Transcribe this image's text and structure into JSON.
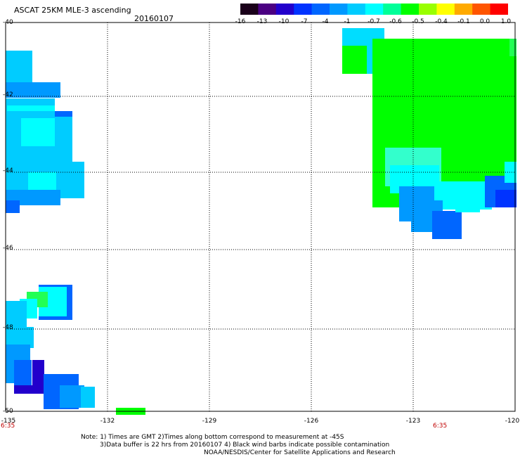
{
  "header": {
    "title": "ASCAT 25KM MLE-3 ascending",
    "date": "20160107"
  },
  "colorbar": {
    "labels": [
      "-16",
      "-13",
      "-10",
      "-7",
      "-4",
      "-1",
      "-0.7",
      "-0.6",
      "-0.5",
      "-0.4",
      "-0.1",
      "0.0",
      "1.0"
    ],
    "colors": [
      "#1a001a",
      "#4b0082",
      "#2200cc",
      "#0033ff",
      "#0066ff",
      "#0099ff",
      "#00ccff",
      "#00ffff",
      "#00ff99",
      "#00ff00",
      "#99ff00",
      "#ffff00",
      "#ffaa00",
      "#ff5500",
      "#ff0000"
    ]
  },
  "axes": {
    "lat_labels": [
      "-40",
      "-42",
      "-44",
      "-46",
      "-48",
      "-50"
    ],
    "lon_labels": [
      "-135",
      "-132",
      "-129",
      "-126",
      "-123",
      "-120"
    ],
    "lon_label_prefix": "-12",
    "time_labels": [
      "6:35",
      "6:35"
    ]
  },
  "notes": {
    "line1": "Note: 1) Times are GMT 2)Times along bottom correspond to measurement at -45S",
    "line2": "3)Data buffer is 22 hrs from 20160107 4) Black wind barbs indicate possible contamination",
    "line3": "NOAA/NESDIS/Center for Satellite Applications and Research"
  },
  "palette": {
    "green": "#00ff00",
    "green_light": "#22ff55",
    "cyan": "#00ffff",
    "cyan_light": "#33ffcc",
    "sky": "#00ccff",
    "lightblue": "#00ddff",
    "blue": "#0099ff",
    "midblue": "#0066ff",
    "darkblue": "#0033ff",
    "indigo": "#2200cc"
  }
}
